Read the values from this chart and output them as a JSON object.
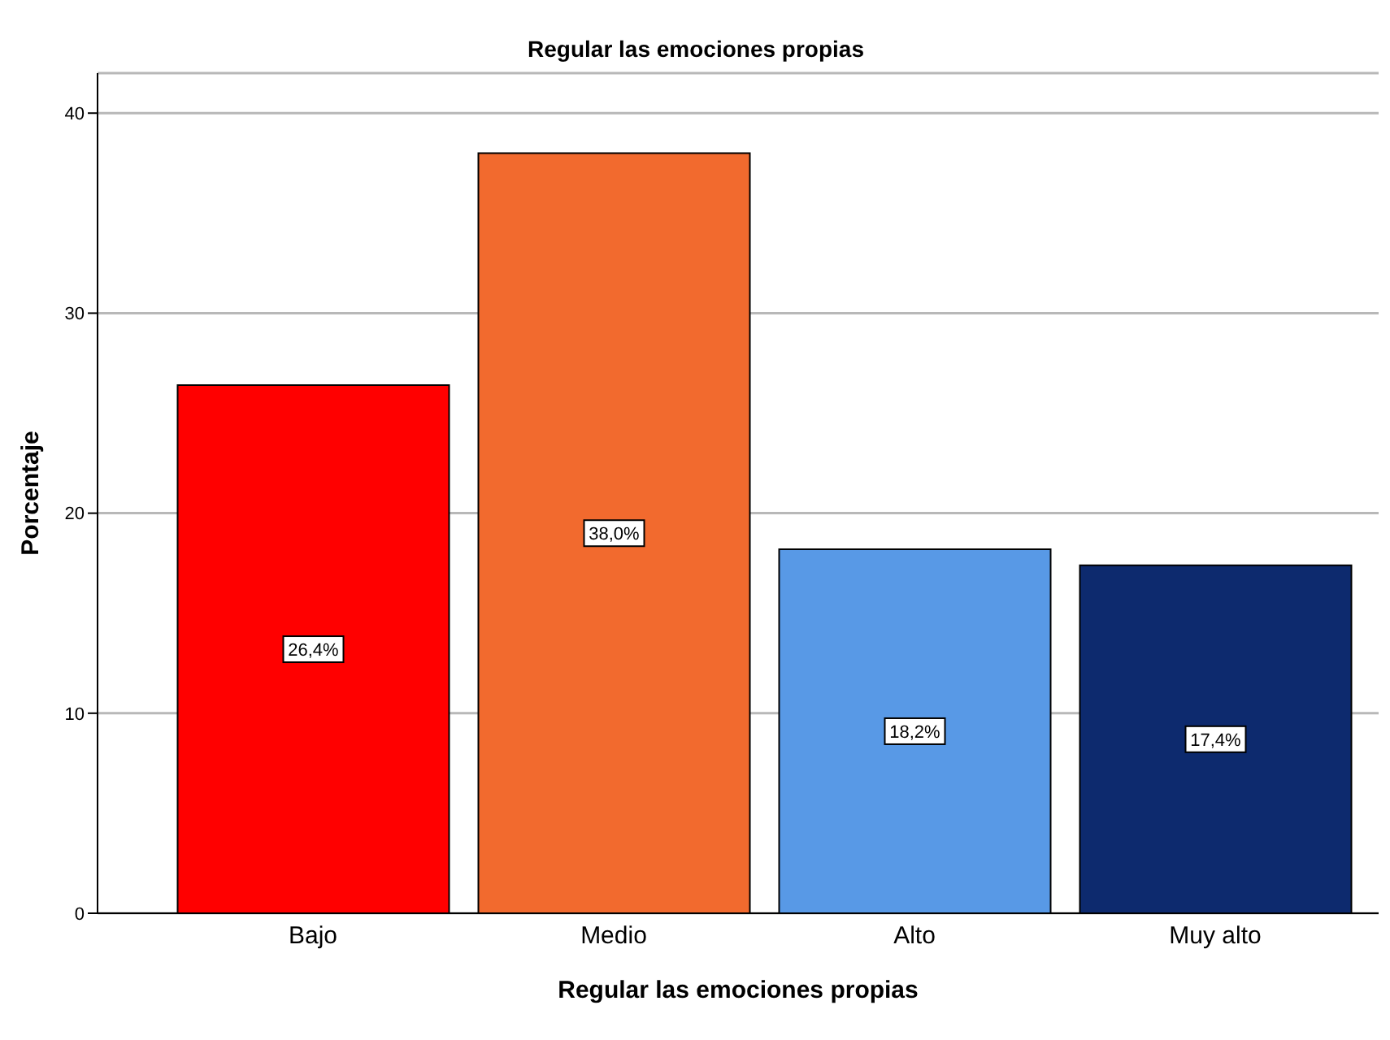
{
  "chart_data": {
    "type": "bar",
    "title": "Regular las emociones propias",
    "xlabel": "Regular las emociones propias",
    "ylabel": "Porcentaje",
    "categories": [
      "Bajo",
      "Medio",
      "Alto",
      "Muy alto"
    ],
    "values": [
      26.4,
      38.0,
      18.2,
      17.4
    ],
    "colors": [
      "#ff0000",
      "#f26a2e",
      "#5899e6",
      "#0d2a6e"
    ],
    "value_labels": [
      "26,4%",
      "38,0%",
      "18,2%",
      "17,4%"
    ],
    "ylim": [
      0,
      42
    ],
    "yticks": [
      0,
      10,
      20,
      30,
      40
    ],
    "grid": "y"
  }
}
